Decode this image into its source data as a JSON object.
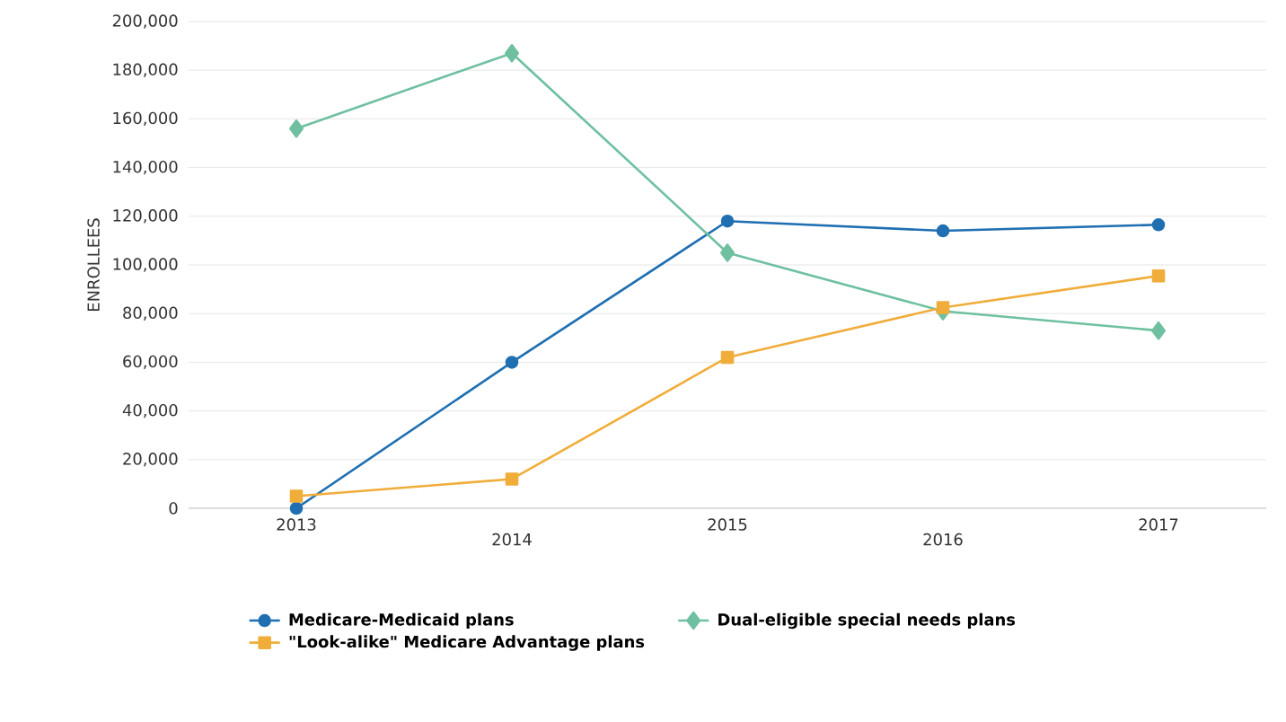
{
  "chart_data": {
    "type": "line",
    "ylabel": "ENROLLEES",
    "categories": [
      "2013",
      "2014",
      "2015",
      "2016",
      "2017"
    ],
    "ylim": [
      0,
      200000
    ],
    "yticks": [
      {
        "value": 0,
        "label": "0"
      },
      {
        "value": 20000,
        "label": "20,000"
      },
      {
        "value": 40000,
        "label": "40,000"
      },
      {
        "value": 60000,
        "label": "60,000"
      },
      {
        "value": 80000,
        "label": "80,000"
      },
      {
        "value": 100000,
        "label": "100,000"
      },
      {
        "value": 120000,
        "label": "120,000"
      },
      {
        "value": 140000,
        "label": "140,000"
      },
      {
        "value": 160000,
        "label": "160,000"
      },
      {
        "value": 180000,
        "label": "180,000"
      },
      {
        "value": 200000,
        "label": "200,000"
      }
    ],
    "grid": "y",
    "legend": "bottom",
    "series": [
      {
        "name": "Medicare-Medicaid plans",
        "color": "#1f6fb2",
        "marker": "circle",
        "values": [
          0,
          60000,
          118000,
          114000,
          116500
        ]
      },
      {
        "name": "Dual-eligible special needs plans",
        "color": "#6fc0a0",
        "marker": "diamond",
        "values": [
          156000,
          187000,
          105000,
          81000,
          73000
        ]
      },
      {
        "name": "\"Look-alike\" Medicare Advantage plans",
        "color": "#f0ad3a",
        "marker": "square",
        "values": [
          5000,
          12000,
          62000,
          82500,
          95500
        ]
      }
    ]
  }
}
